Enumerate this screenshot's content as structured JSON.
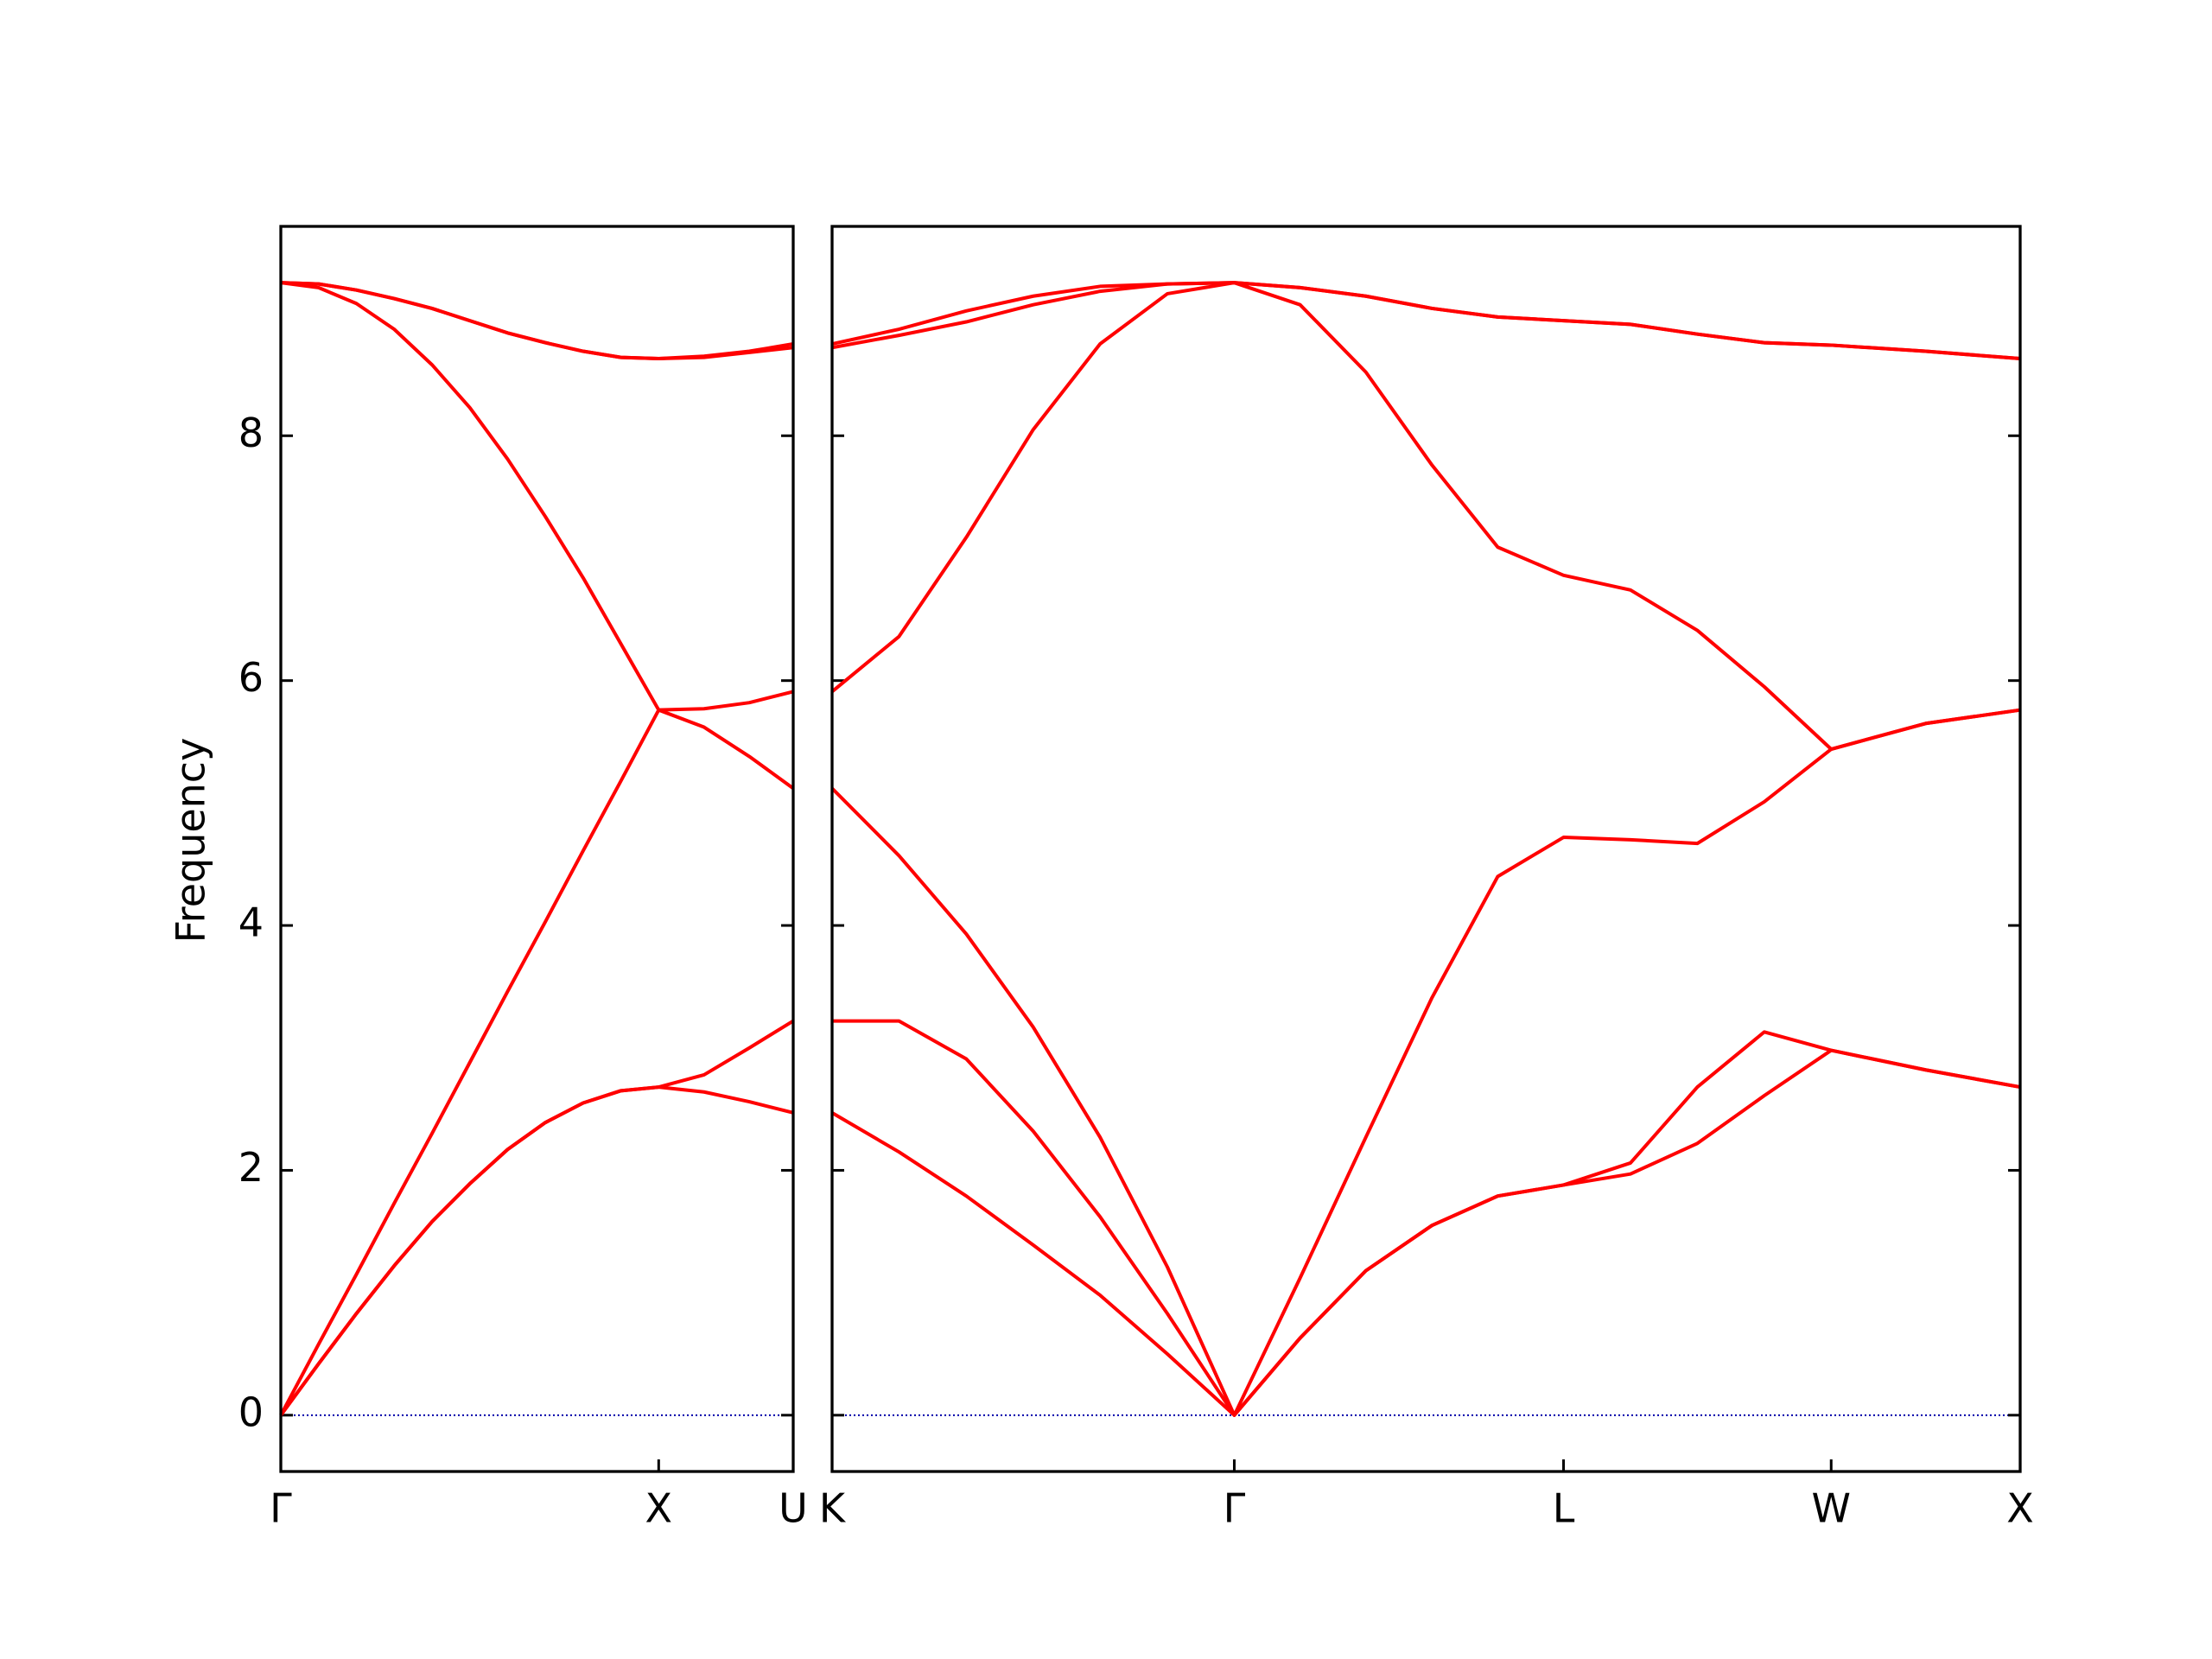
{
  "chart_data": [
    {
      "type": "line",
      "y_label": "Frequency",
      "x": [
        0,
        0.1,
        0.2,
        0.3,
        0.4,
        0.5,
        0.6,
        0.7,
        0.8,
        0.9,
        1,
        1.12,
        1.24,
        1.356
      ],
      "xlim": [
        0,
        1.356
      ],
      "xticks": [
        {
          "value": 0,
          "label": "Γ"
        },
        {
          "value": 1,
          "label": "X"
        },
        {
          "value": 1.356,
          "label": "U"
        }
      ],
      "ylim": [
        -0.46,
        9.71
      ],
      "yticks": [
        0,
        2,
        4,
        6,
        8
      ],
      "ytick_labels": true,
      "zero_line_color": "#0000aa",
      "series": [
        {
          "color": "#ff0000",
          "values": [
            0,
            0.42,
            0.83,
            1.22,
            1.58,
            1.89,
            2.17,
            2.39,
            2.55,
            2.65,
            2.68,
            2.64,
            2.56,
            2.47
          ]
        },
        {
          "color": "#ff0000",
          "values": [
            0,
            0.42,
            0.83,
            1.22,
            1.58,
            1.89,
            2.17,
            2.39,
            2.55,
            2.65,
            2.68,
            2.78,
            3.0,
            3.22
          ]
        },
        {
          "color": "#ff0000",
          "values": [
            0,
            0.58,
            1.15,
            1.73,
            2.3,
            2.88,
            3.46,
            4.03,
            4.61,
            5.18,
            5.76,
            5.62,
            5.38,
            5.12
          ]
        },
        {
          "color": "#ff0000",
          "values": [
            9.25,
            9.21,
            9.08,
            8.87,
            8.58,
            8.23,
            7.81,
            7.34,
            6.84,
            6.3,
            5.76,
            5.77,
            5.82,
            5.91
          ]
        },
        {
          "color": "#ff0000",
          "values": [
            9.25,
            9.24,
            9.19,
            9.12,
            9.04,
            8.94,
            8.84,
            8.76,
            8.69,
            8.64,
            8.63,
            8.64,
            8.68,
            8.72
          ]
        },
        {
          "color": "#ff0000",
          "values": [
            9.25,
            9.24,
            9.19,
            9.12,
            9.04,
            8.94,
            8.84,
            8.76,
            8.69,
            8.64,
            8.63,
            8.65,
            8.69,
            8.75
          ]
        }
      ]
    },
    {
      "type": "line",
      "x": [
        1.356,
        1.533,
        1.711,
        1.888,
        2.065,
        2.243,
        2.42,
        2.594,
        2.768,
        2.943,
        3.117,
        3.291,
        3.468,
        3.645,
        3.822,
        3.999,
        4.249,
        4.499
      ],
      "xlim": [
        1.356,
        4.499
      ],
      "xticks": [
        {
          "value": 1.356,
          "label": "K"
        },
        {
          "value": 2.42,
          "label": "Γ"
        },
        {
          "value": 3.291,
          "label": "L"
        },
        {
          "value": 3.999,
          "label": "W"
        },
        {
          "value": 4.499,
          "label": "X"
        }
      ],
      "ylim": [
        -0.46,
        9.71
      ],
      "yticks": [
        0,
        2,
        4,
        6,
        8
      ],
      "ytick_labels": false,
      "zero_line_color": "#0000aa",
      "series": [
        {
          "color": "#ff0000",
          "values": [
            2.47,
            2.15,
            1.79,
            1.39,
            0.98,
            0.5,
            0,
            0.63,
            1.18,
            1.55,
            1.79,
            1.88,
            1.97,
            2.22,
            2.61,
            2.98,
            2.82,
            2.68
          ]
        },
        {
          "color": "#ff0000",
          "values": [
            3.22,
            3.22,
            2.91,
            2.32,
            1.62,
            0.83,
            0,
            0.63,
            1.18,
            1.55,
            1.79,
            1.88,
            2.06,
            2.68,
            3.13,
            2.98,
            2.82,
            2.68
          ]
        },
        {
          "color": "#ff0000",
          "values": [
            5.12,
            4.57,
            3.93,
            3.17,
            2.27,
            1.21,
            0,
            1.12,
            2.27,
            3.41,
            4.4,
            4.72,
            4.7,
            4.67,
            5.01,
            5.44,
            5.65,
            5.76
          ]
        },
        {
          "color": "#ff0000",
          "values": [
            5.91,
            6.36,
            7.17,
            8.05,
            8.75,
            9.16,
            9.25,
            9.07,
            8.52,
            7.76,
            7.09,
            6.86,
            6.74,
            6.41,
            5.95,
            5.44,
            5.65,
            5.76
          ]
        },
        {
          "color": "#ff0000",
          "values": [
            8.72,
            8.82,
            8.93,
            9.07,
            9.18,
            9.24,
            9.25,
            9.21,
            9.14,
            9.04,
            8.97,
            8.94,
            8.91,
            8.83,
            8.76,
            8.74,
            8.69,
            8.63
          ]
        },
        {
          "color": "#ff0000",
          "values": [
            8.75,
            8.87,
            9.02,
            9.14,
            9.22,
            9.24,
            9.25,
            9.21,
            9.14,
            9.04,
            8.97,
            8.94,
            8.91,
            8.83,
            8.76,
            8.74,
            8.69,
            8.63
          ]
        }
      ]
    }
  ]
}
